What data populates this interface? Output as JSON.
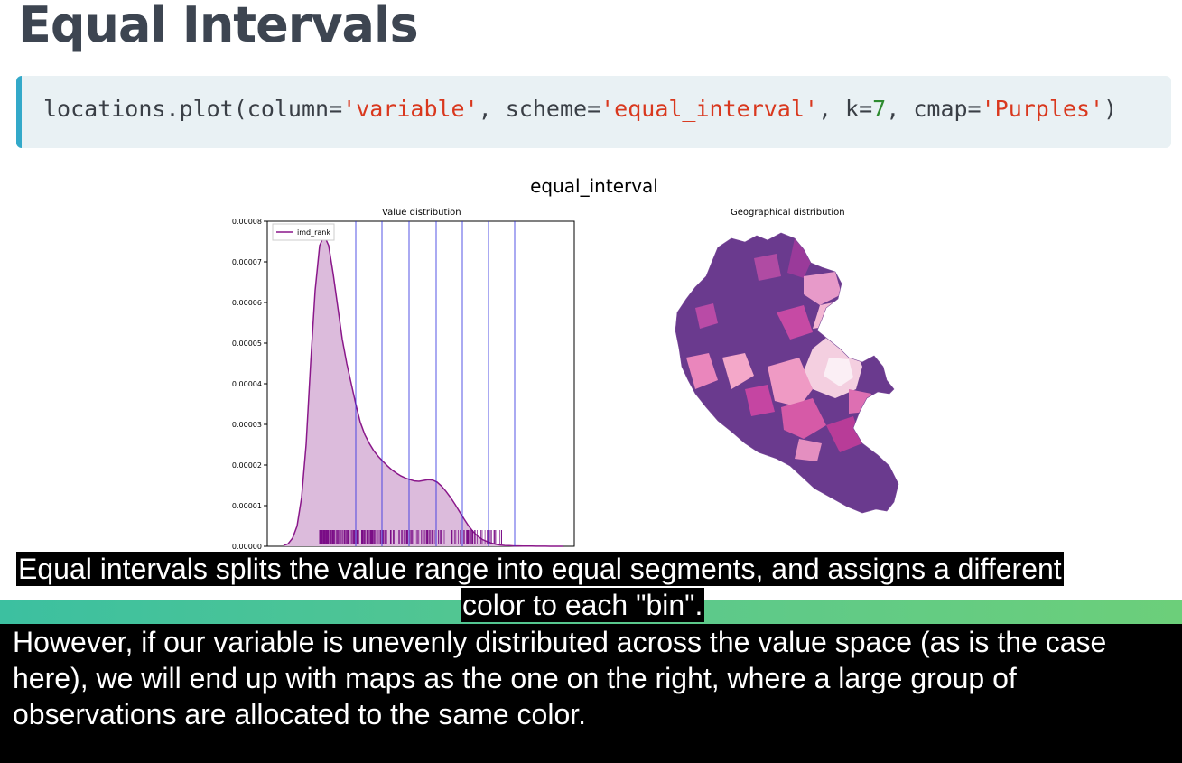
{
  "header": {
    "title": "Equal Intervals"
  },
  "code": {
    "p1": "locations.plot(column=",
    "s1": "'variable'",
    "p2": ", scheme=",
    "s2": "'equal_interval'",
    "p3": ", k=",
    "n1": "7",
    "p4": ", cmap=",
    "s3": "'Purples'",
    "p5": ")"
  },
  "figure": {
    "suptitle": "equal_interval",
    "left_title": "Value distribution",
    "right_title": "Geographical distribution",
    "legend_label": "imd_rank"
  },
  "chart_data": {
    "type": "area",
    "title": "Value distribution",
    "ylim": [
      0,
      8e-05
    ],
    "yticks": [
      "0.00000",
      "0.00001",
      "0.00002",
      "0.00003",
      "0.00004",
      "0.00005",
      "0.00006",
      "0.00007",
      "0.00008"
    ],
    "series": [
      {
        "name": "imd_rank"
      }
    ],
    "x": [
      0,
      5,
      10,
      15,
      20,
      25,
      30,
      35,
      40,
      45,
      50,
      55,
      60,
      65,
      70,
      75,
      80,
      85,
      90,
      95,
      100,
      105,
      110,
      115,
      120,
      125,
      130,
      135,
      140,
      145,
      150,
      155,
      160,
      165,
      170,
      175,
      180,
      185,
      190,
      195,
      200,
      205,
      210,
      215,
      220,
      225,
      230,
      235,
      240,
      245,
      250,
      255,
      260,
      265,
      270,
      275,
      280,
      285,
      290,
      295,
      300,
      305,
      310
    ],
    "y": [
      2e-07,
      6e-07,
      2e-06,
      5e-06,
      1.2e-05,
      2.5e-05,
      4.5e-05,
      6.3e-05,
      7.4e-05,
      7.65e-05,
      7.4e-05,
      6.7e-05,
      5.9e-05,
      5.1e-05,
      4.5e-05,
      4e-05,
      3.5e-05,
      3.05e-05,
      2.75e-05,
      2.53e-05,
      2.35e-05,
      2.21e-05,
      2.09e-05,
      1.98e-05,
      1.88e-05,
      1.8e-05,
      1.73e-05,
      1.68e-05,
      1.64e-05,
      1.61e-05,
      1.6e-05,
      1.62e-05,
      1.64e-05,
      1.63e-05,
      1.58e-05,
      1.48e-05,
      1.35e-05,
      1.2e-05,
      1.03e-05,
      8.5e-06,
      6.7e-06,
      5e-06,
      3.6e-06,
      2.5e-06,
      1.7e-06,
      1.2e-06,
      8e-07,
      5e-07,
      3e-07,
      2e-07,
      1.5e-07,
      1e-07,
      8e-08,
      6e-08,
      5e-08,
      4e-08,
      3e-08,
      2e-08,
      2e-08,
      1e-08,
      1e-08,
      1e-08,
      0.0
    ],
    "bin_breaks": [
      80,
      109,
      139,
      169,
      198,
      227,
      256
    ],
    "colors": {
      "fill": "#dcbbdc",
      "line": "#8a178a",
      "rug": "#7a0d86",
      "breaks": "#2a2ae0"
    }
  },
  "captions": {
    "line1": "Equal intervals splits the value range into equal segments, and assigns a different",
    "line1b": "color to each \"bin\".",
    "line2": "However, if our variable is unevenly distributed across the value space (as is the case",
    "line3": "here), we will end up with maps as the one on the right, where a large group of",
    "line4": "observations are allocated to the same color."
  }
}
